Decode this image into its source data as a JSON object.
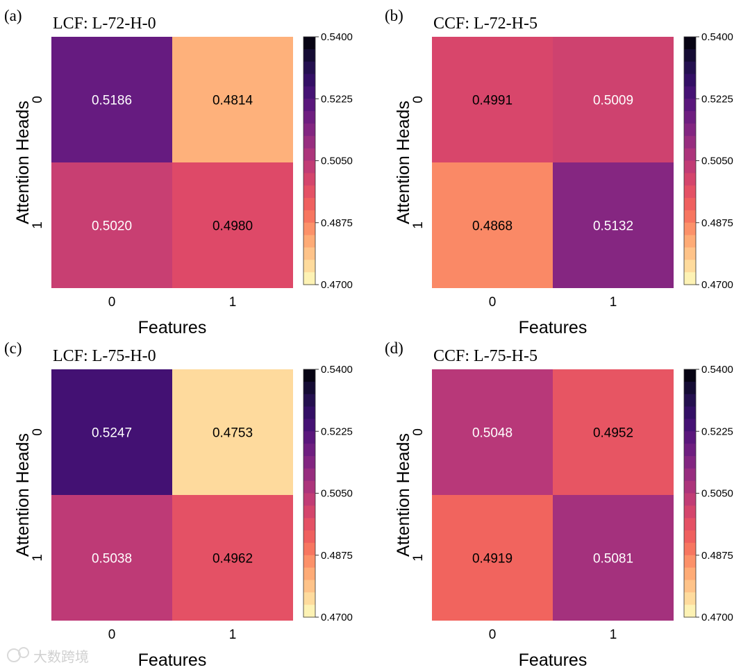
{
  "chart_data": [
    {
      "type": "heatmap",
      "panel_label": "(a)",
      "title": "LCF: L-72-H-0",
      "xlabel": "Features",
      "ylabel": "Attention Heads",
      "x_ticks": [
        "0",
        "1"
      ],
      "y_ticks": [
        "0",
        "1"
      ],
      "values": [
        [
          0.5186,
          0.4814
        ],
        [
          0.502,
          0.498
        ]
      ],
      "value_labels": [
        [
          "0.5186",
          "0.4814"
        ],
        [
          "0.5020",
          "0.4980"
        ]
      ],
      "colorbar": {
        "vmin": 0.47,
        "vmax": 0.54,
        "ticks": [
          "0.5400",
          "0.5225",
          "0.5050",
          "0.4875",
          "0.4700"
        ]
      }
    },
    {
      "type": "heatmap",
      "panel_label": "(b)",
      "title": "CCF: L-72-H-5",
      "xlabel": "Features",
      "ylabel": "Attention Heads",
      "x_ticks": [
        "0",
        "1"
      ],
      "y_ticks": [
        "0",
        "1"
      ],
      "values": [
        [
          0.4991,
          0.5009
        ],
        [
          0.4868,
          0.5132
        ]
      ],
      "value_labels": [
        [
          "0.4991",
          "0.5009"
        ],
        [
          "0.4868",
          "0.5132"
        ]
      ],
      "colorbar": {
        "vmin": 0.47,
        "vmax": 0.54,
        "ticks": [
          "0.5400",
          "0.5225",
          "0.5050",
          "0.4875",
          "0.4700"
        ]
      }
    },
    {
      "type": "heatmap",
      "panel_label": "(c)",
      "title": "LCF: L-75-H-0",
      "xlabel": "Features",
      "ylabel": "Attention Heads",
      "x_ticks": [
        "0",
        "1"
      ],
      "y_ticks": [
        "0",
        "1"
      ],
      "values": [
        [
          0.5247,
          0.4753
        ],
        [
          0.5038,
          0.4962
        ]
      ],
      "value_labels": [
        [
          "0.5247",
          "0.4753"
        ],
        [
          "0.5038",
          "0.4962"
        ]
      ],
      "colorbar": {
        "vmin": 0.47,
        "vmax": 0.54,
        "ticks": [
          "0.5400",
          "0.5225",
          "0.5050",
          "0.4875",
          "0.4700"
        ]
      }
    },
    {
      "type": "heatmap",
      "panel_label": "(d)",
      "title": "CCF: L-75-H-5",
      "xlabel": "Features",
      "ylabel": "Attention Heads",
      "x_ticks": [
        "0",
        "1"
      ],
      "y_ticks": [
        "0",
        "1"
      ],
      "values": [
        [
          0.5048,
          0.4952
        ],
        [
          0.4919,
          0.5081
        ]
      ],
      "value_labels": [
        [
          "0.5048",
          "0.4952"
        ],
        [
          "0.4919",
          "0.5081"
        ]
      ],
      "colorbar": {
        "vmin": 0.47,
        "vmax": 0.54,
        "ticks": [
          "0.5400",
          "0.5225",
          "0.5050",
          "0.4875",
          "0.4700"
        ]
      }
    }
  ],
  "colormap": {
    "name": "magma_r",
    "stops": [
      "#fcfdbf",
      "#fecf92",
      "#fe9f6d",
      "#f4685c",
      "#de4968",
      "#b73779",
      "#8c2981",
      "#641a80",
      "#3b0f70",
      "#1c1044",
      "#000004"
    ]
  },
  "watermark": "大数跨境"
}
